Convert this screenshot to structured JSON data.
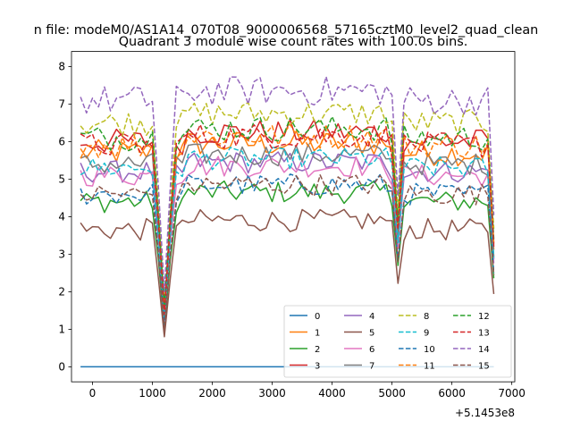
{
  "figure": {
    "suptitle": "n file: modeM0/AS1A14_070T08_9000006568_57165cztM0_level2_quad_clean",
    "title": "Quadrant 3 module wise count rates with 100.0s bins.",
    "x_offset_label": "+5.1453e8"
  },
  "chart_data": {
    "type": "line",
    "title": "Quadrant 3 module wise count rates with 100.0s bins.",
    "xlabel": "",
    "ylabel": "",
    "x_offset": "+5.1453e8",
    "xlim": [
      -350,
      7050
    ],
    "ylim": [
      -0.4,
      8.4
    ],
    "xticks": [
      0,
      1000,
      2000,
      3000,
      4000,
      5000,
      6000,
      7000
    ],
    "yticks": [
      0,
      1,
      2,
      3,
      4,
      5,
      6,
      7,
      8
    ],
    "grid": false,
    "legend_placement": "lower-right",
    "legend_columns": 4,
    "x_start": -200,
    "x_step": 100,
    "x_end": 6700,
    "dip_x": [
      1200,
      5100
    ],
    "series": [
      {
        "name": "0",
        "color": "#1f77b4",
        "style": "solid",
        "base": 0.0,
        "amp": 0.0,
        "dip": 0.0
      },
      {
        "name": "1",
        "color": "#ff7f0e",
        "style": "solid",
        "base": 5.7,
        "amp": 0.35,
        "dip": 1.4
      },
      {
        "name": "2",
        "color": "#2ca02c",
        "style": "solid",
        "base": 4.4,
        "amp": 0.3,
        "dip": 1.0
      },
      {
        "name": "3",
        "color": "#d62728",
        "style": "solid",
        "base": 6.0,
        "amp": 0.35,
        "dip": 1.5
      },
      {
        "name": "4",
        "color": "#9467bd",
        "style": "solid",
        "base": 5.2,
        "amp": 0.3,
        "dip": 1.3
      },
      {
        "name": "5",
        "color": "#8c564b",
        "style": "solid",
        "base": 3.65,
        "amp": 0.3,
        "dip": 0.8
      },
      {
        "name": "6",
        "color": "#e377c2",
        "style": "solid",
        "base": 5.1,
        "amp": 0.3,
        "dip": 1.2
      },
      {
        "name": "7",
        "color": "#7f7f7f",
        "style": "solid",
        "base": 5.4,
        "amp": 0.3,
        "dip": 1.3
      },
      {
        "name": "8",
        "color": "#bcbd22",
        "style": "dashed",
        "base": 6.5,
        "amp": 0.35,
        "dip": 1.8
      },
      {
        "name": "9",
        "color": "#17becf",
        "style": "dashed",
        "base": 5.3,
        "amp": 0.3,
        "dip": 1.3
      },
      {
        "name": "10",
        "color": "#1f77b4",
        "style": "dashed",
        "base": 4.6,
        "amp": 0.3,
        "dip": 1.1
      },
      {
        "name": "11",
        "color": "#ff7f0e",
        "style": "dashed",
        "base": 5.9,
        "amp": 0.35,
        "dip": 1.5
      },
      {
        "name": "12",
        "color": "#2ca02c",
        "style": "dashed",
        "base": 6.1,
        "amp": 0.35,
        "dip": 1.6
      },
      {
        "name": "13",
        "color": "#d62728",
        "style": "dashed",
        "base": 5.9,
        "amp": 0.35,
        "dip": 1.4
      },
      {
        "name": "14",
        "color": "#9467bd",
        "style": "dashed",
        "base": 7.1,
        "amp": 0.4,
        "dip": 2.0
      },
      {
        "name": "15",
        "color": "#8c564b",
        "style": "dashed",
        "base": 4.6,
        "amp": 0.3,
        "dip": 1.0
      }
    ]
  }
}
